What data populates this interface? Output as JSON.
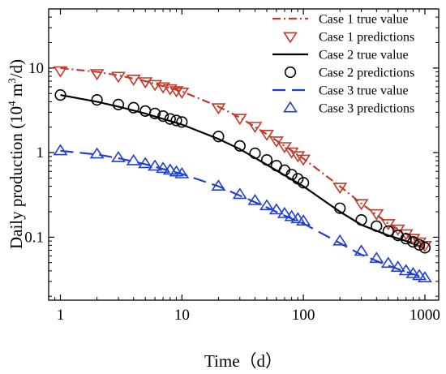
{
  "chart_data": {
    "type": "line",
    "xlabel": "Time（d）",
    "ylabel_main": "Daily production (10",
    "ylabel_sup": "4",
    "ylabel_tail": " m",
    "ylabel_sup2": "3",
    "ylabel_end": "/d)",
    "xscale": "log",
    "yscale": "log",
    "xlim": [
      0.8,
      1300
    ],
    "ylim": [
      0.018,
      50
    ],
    "grid": false,
    "legend_position": "top-right",
    "x_ticks": [
      {
        "value": 1,
        "label": "1"
      },
      {
        "value": 10,
        "label": "10"
      },
      {
        "value": 100,
        "label": "100"
      },
      {
        "value": 1000,
        "label": "1000"
      }
    ],
    "y_ticks": [
      {
        "value": 0.1,
        "label": "0.1"
      },
      {
        "value": 1,
        "label": "1"
      },
      {
        "value": 10,
        "label": "10"
      }
    ],
    "series": [
      {
        "name": "Case 1 true value",
        "kind": "line",
        "color": "#c0392b",
        "dash": "dashdot",
        "x": [
          1,
          2,
          3,
          5,
          7,
          10,
          20,
          30,
          50,
          70,
          100,
          200,
          300,
          500,
          700,
          1000
        ],
        "y": [
          10.0,
          9.0,
          8.2,
          7.0,
          6.1,
          5.3,
          3.5,
          2.6,
          1.65,
          1.2,
          0.85,
          0.4,
          0.25,
          0.145,
          0.11,
          0.078
        ]
      },
      {
        "name": "Case 1 predictions",
        "kind": "marker",
        "marker": "triangle-down",
        "color": "#c0392b",
        "x": [
          1,
          2,
          3,
          4,
          5,
          6,
          7,
          8,
          9,
          10,
          20,
          30,
          40,
          50,
          60,
          70,
          80,
          90,
          100,
          200,
          300,
          400,
          500,
          600,
          700,
          800,
          900,
          1000
        ],
        "y": [
          9.3,
          8.6,
          8.0,
          7.4,
          6.9,
          6.4,
          6.0,
          5.7,
          5.4,
          5.2,
          3.4,
          2.55,
          2.05,
          1.65,
          1.38,
          1.18,
          1.02,
          0.92,
          0.84,
          0.39,
          0.25,
          0.19,
          0.145,
          0.125,
          0.11,
          0.097,
          0.088,
          0.08
        ]
      },
      {
        "name": "Case 2 true value",
        "kind": "line",
        "color": "#000000",
        "dash": "solid",
        "x": [
          1,
          2,
          3,
          5,
          7,
          10,
          20,
          30,
          50,
          70,
          100,
          200,
          300,
          500,
          700,
          1000
        ],
        "y": [
          4.8,
          4.0,
          3.5,
          2.9,
          2.5,
          2.15,
          1.45,
          1.1,
          0.72,
          0.54,
          0.4,
          0.2,
          0.14,
          0.105,
          0.09,
          0.074
        ]
      },
      {
        "name": "Case 2 predictions",
        "kind": "marker",
        "marker": "circle",
        "color": "#000000",
        "x": [
          1,
          2,
          3,
          4,
          5,
          6,
          7,
          8,
          9,
          10,
          20,
          30,
          40,
          50,
          60,
          70,
          80,
          90,
          100,
          200,
          300,
          400,
          500,
          600,
          700,
          800,
          900,
          1000
        ],
        "y": [
          4.8,
          4.2,
          3.7,
          3.4,
          3.1,
          2.9,
          2.7,
          2.5,
          2.4,
          2.3,
          1.55,
          1.2,
          0.98,
          0.82,
          0.7,
          0.62,
          0.55,
          0.49,
          0.44,
          0.22,
          0.16,
          0.135,
          0.118,
          0.105,
          0.096,
          0.088,
          0.081,
          0.075
        ]
      },
      {
        "name": "Case 3 true value",
        "kind": "line",
        "color": "#1f3fd4",
        "dash": "dash",
        "x": [
          1,
          2,
          3,
          5,
          7,
          10,
          20,
          30,
          50,
          70,
          100,
          200,
          300,
          500,
          700,
          1000
        ],
        "y": [
          1.05,
          0.95,
          0.86,
          0.73,
          0.64,
          0.56,
          0.4,
          0.31,
          0.225,
          0.18,
          0.145,
          0.085,
          0.062,
          0.046,
          0.039,
          0.033
        ]
      },
      {
        "name": "Case 3 predictions",
        "kind": "marker",
        "marker": "triangle-up",
        "color": "#1f3fd4",
        "x": [
          1,
          2,
          3,
          4,
          5,
          6,
          7,
          8,
          9,
          10,
          20,
          30,
          40,
          50,
          60,
          70,
          80,
          90,
          100,
          200,
          300,
          400,
          500,
          600,
          700,
          800,
          900,
          1000
        ],
        "y": [
          1.05,
          0.96,
          0.87,
          0.8,
          0.74,
          0.69,
          0.65,
          0.62,
          0.59,
          0.56,
          0.4,
          0.32,
          0.27,
          0.235,
          0.21,
          0.19,
          0.175,
          0.165,
          0.155,
          0.09,
          0.068,
          0.056,
          0.049,
          0.044,
          0.04,
          0.037,
          0.035,
          0.033
        ]
      }
    ]
  }
}
